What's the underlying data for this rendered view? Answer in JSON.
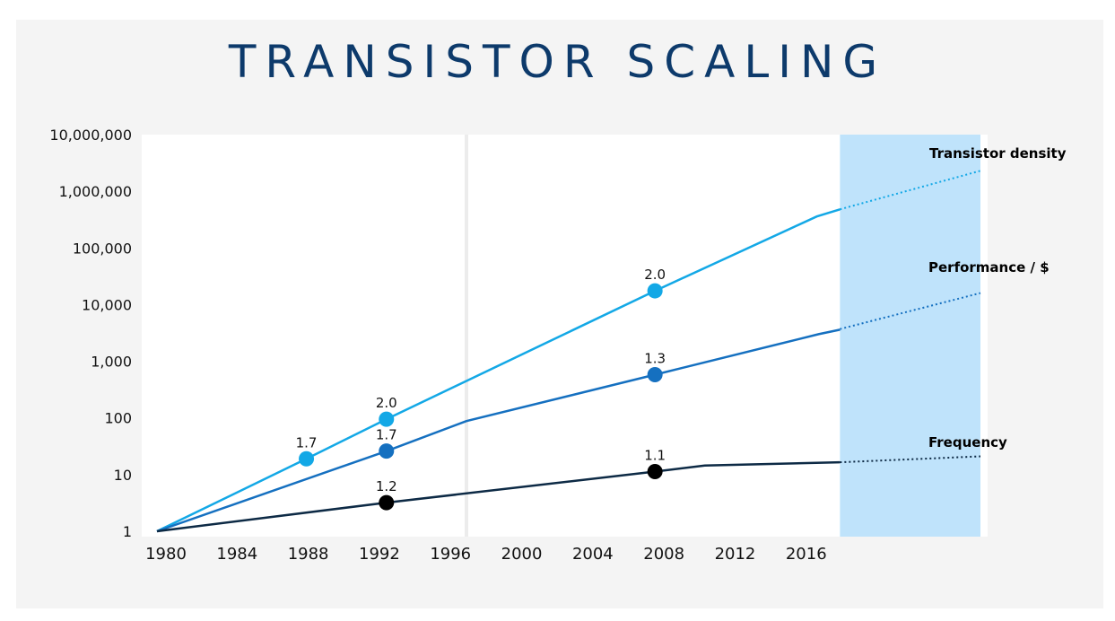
{
  "title": "TRANSISTOR SCALING",
  "chart_data": {
    "type": "line",
    "yscale": "log",
    "ylim": [
      1,
      10000000
    ],
    "xlim": [
      1980,
      2019
    ],
    "y_ticks": [
      "1",
      "10",
      "100",
      "1,000",
      "10,000",
      "100,000",
      "1,000,000",
      "10,000,000"
    ],
    "x_ticks": [
      "1980",
      "1984",
      "1988",
      "1992",
      "1996",
      "2000",
      "2004",
      "2008",
      "2012",
      "2016"
    ],
    "x_tick_values": [
      1980,
      1984,
      1988,
      1992,
      1996,
      2000,
      2004,
      2008,
      2012,
      2016
    ],
    "vline_x": 1997.4,
    "projection_band": [
      2018.4,
      2026.3
    ],
    "grid": false,
    "series": [
      {
        "name": "Transistor density",
        "color": "#13a8e6",
        "x": [
          1980,
          1988.4,
          1992.9,
          2008,
          2017.1,
          2018.4
        ],
        "y": [
          1,
          19,
          95,
          17500,
          360000,
          480000
        ],
        "projection": {
          "x": [
            2018.4,
            2026.3
          ],
          "y": [
            480000,
            2300000
          ]
        },
        "markers": [
          {
            "x": 1988.4,
            "y": 19,
            "label": "1.7"
          },
          {
            "x": 1992.9,
            "y": 95,
            "label": "2.0"
          },
          {
            "x": 2008,
            "y": 17500,
            "label": "2.0"
          }
        ]
      },
      {
        "name": "Performance / $",
        "color": "#1570c0",
        "x": [
          1980,
          1992.9,
          1997.4,
          2008,
          2017.2,
          2018.4
        ],
        "y": [
          1,
          26,
          88,
          580,
          3000,
          3600
        ],
        "projection": {
          "x": [
            2018.4,
            2026.3
          ],
          "y": [
            3700,
            16000
          ]
        },
        "markers": [
          {
            "x": 1992.9,
            "y": 26,
            "label": "1.7"
          },
          {
            "x": 2008,
            "y": 580,
            "label": "1.3"
          }
        ]
      },
      {
        "name": "Frequency",
        "color": "#0d2a45",
        "x": [
          1980,
          1992.9,
          2008,
          2010.8,
          2018.4
        ],
        "y": [
          1,
          3.2,
          11.3,
          14.5,
          16.5
        ],
        "projection": {
          "x": [
            2018.4,
            2026.3
          ],
          "y": [
            16.5,
            21
          ]
        },
        "markers": [
          {
            "x": 1992.9,
            "y": 3.2,
            "label": "1.2"
          },
          {
            "x": 2008,
            "y": 11.3,
            "label": "1.1"
          }
        ],
        "marker_color": "#000000"
      }
    ]
  }
}
